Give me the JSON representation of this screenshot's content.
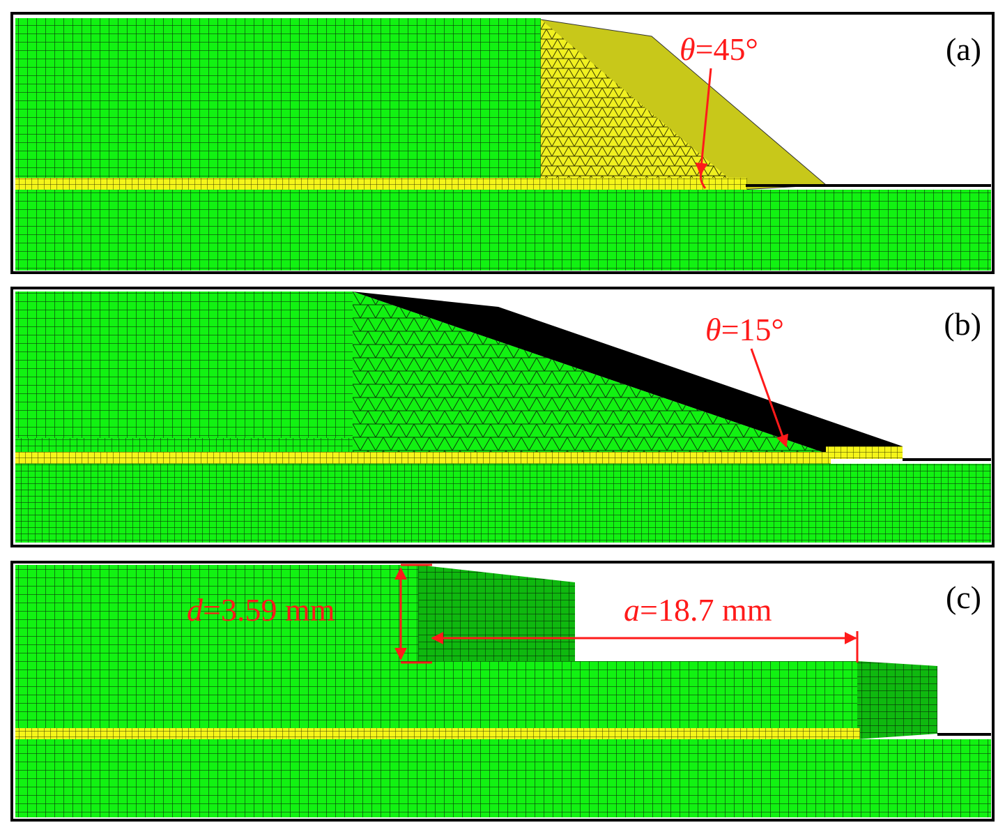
{
  "panels": [
    {
      "label": "(a)",
      "annotation": {
        "symbol": "θ",
        "text": "=45°"
      }
    },
    {
      "label": "(b)",
      "annotation": {
        "symbol": "θ",
        "text": "=15°"
      }
    },
    {
      "label": "(c)",
      "annotations": [
        {
          "symbol": "d",
          "text": "=3.59 mm"
        },
        {
          "symbol": "a",
          "text": "=18.7 mm"
        }
      ]
    }
  ]
}
